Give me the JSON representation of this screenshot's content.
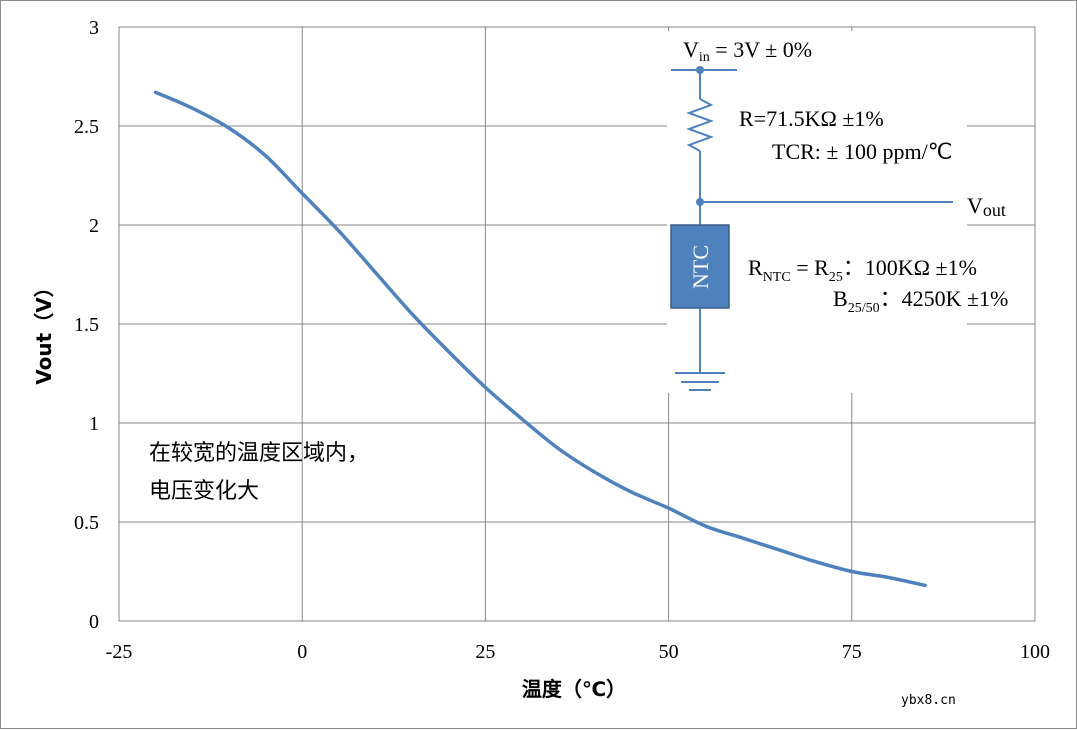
{
  "chart_data": {
    "type": "line",
    "xlabel": "温度（℃）",
    "ylabel": "Vout（V）",
    "xlim": [
      -25,
      100
    ],
    "ylim": [
      0,
      3
    ],
    "xticks": [
      "-25",
      "0",
      "25",
      "50",
      "75",
      "100"
    ],
    "xtick_values": [
      -25,
      0,
      25,
      50,
      75,
      100
    ],
    "yticks": [
      "0",
      "0.5",
      "1",
      "1.5",
      "2",
      "2.5",
      "3"
    ],
    "ytick_values": [
      0,
      0.5,
      1,
      1.5,
      2,
      2.5,
      3
    ],
    "grid": true,
    "series": [
      {
        "color": "#4f81bd",
        "x": [
          -20,
          -15,
          -10,
          -5,
          0,
          5,
          10,
          15,
          20,
          25,
          30,
          35,
          40,
          45,
          50,
          55,
          60,
          65,
          70,
          75,
          80,
          85
        ],
        "y": [
          2.67,
          2.59,
          2.49,
          2.35,
          2.16,
          1.97,
          1.76,
          1.55,
          1.36,
          1.18,
          1.02,
          0.87,
          0.75,
          0.65,
          0.57,
          0.48,
          0.42,
          0.36,
          0.3,
          0.25,
          0.22,
          0.18
        ]
      }
    ]
  },
  "annotation": {
    "line1": "在较宽的温度区域内，",
    "line2": "电压变化大"
  },
  "circuit": {
    "vin_main": "V",
    "vin_sub": "in",
    "vin_rest": " = 3V ± 0%",
    "r_label": "R=71.5KΩ ±1%",
    "tcr_label": "TCR: ± 100 ppm/℃",
    "vout_main": "V",
    "vout_sub": "out",
    "ntc_box": "NTC",
    "rntc_r": "R",
    "rntc_sub": "NTC",
    "rntc_eq": " = R",
    "r25_sub": "25",
    "rntc_rest": "：100KΩ ±1%",
    "b_main": "B",
    "b_sub": "25/50",
    "b_rest": "：4250K ±1%",
    "line_color": "#4f81bd",
    "ntc_fill": "#4f81bd"
  },
  "watermark": "ybx8.cn"
}
